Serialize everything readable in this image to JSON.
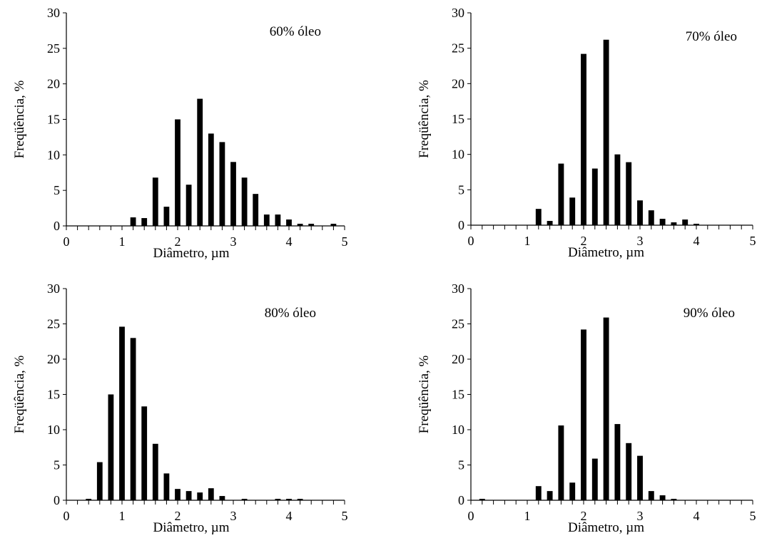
{
  "chart_data": [
    {
      "type": "bar",
      "annotation": "60% óleo",
      "xlabel": "Diâmetro, µm",
      "ylabel": "Freqüência, %",
      "xlim": [
        0,
        5
      ],
      "ylim": [
        0,
        30
      ],
      "xticks": [
        "0",
        "1",
        "2",
        "3",
        "4",
        "5"
      ],
      "yticks": [
        "0",
        "5",
        "10",
        "15",
        "20",
        "25",
        "30"
      ],
      "grid": false,
      "x": [
        1.2,
        1.4,
        1.6,
        1.8,
        2.0,
        2.2,
        2.4,
        2.6,
        2.8,
        3.0,
        3.2,
        3.4,
        3.6,
        3.8,
        4.0,
        4.2,
        4.4,
        4.8
      ],
      "values": [
        1.2,
        1.1,
        6.8,
        2.7,
        15.0,
        5.8,
        17.9,
        13.0,
        11.8,
        9.0,
        6.8,
        4.5,
        1.6,
        1.6,
        0.9,
        0.3,
        0.3,
        0.3
      ]
    },
    {
      "type": "bar",
      "annotation": "70% óleo",
      "xlabel": "Diâmetro, µm",
      "ylabel": "Freqüência, %",
      "xlim": [
        0,
        5
      ],
      "ylim": [
        0,
        30
      ],
      "xticks": [
        "0",
        "1",
        "2",
        "3",
        "4",
        "5"
      ],
      "yticks": [
        "0",
        "5",
        "10",
        "15",
        "20",
        "25",
        "30"
      ],
      "grid": false,
      "x": [
        1.2,
        1.4,
        1.6,
        1.8,
        2.0,
        2.2,
        2.4,
        2.6,
        2.8,
        3.0,
        3.2,
        3.4,
        3.6,
        3.8,
        4.0
      ],
      "values": [
        2.3,
        0.6,
        8.7,
        3.9,
        24.2,
        8.0,
        26.2,
        10.0,
        8.9,
        3.5,
        2.1,
        0.9,
        0.4,
        0.8,
        0.2
      ]
    },
    {
      "type": "bar",
      "annotation": "80% óleo",
      "xlabel": "Diâmetro, µm",
      "ylabel": "Freqüência, %",
      "xlim": [
        0,
        5
      ],
      "ylim": [
        0,
        30
      ],
      "xticks": [
        "0",
        "1",
        "2",
        "3",
        "4",
        "5"
      ],
      "yticks": [
        "0",
        "5",
        "10",
        "15",
        "20",
        "25",
        "30"
      ],
      "grid": false,
      "x": [
        0.4,
        0.6,
        0.8,
        1.0,
        1.2,
        1.4,
        1.6,
        1.8,
        2.0,
        2.2,
        2.4,
        2.6,
        2.8,
        3.2,
        3.8,
        4.0,
        4.2
      ],
      "values": [
        0.2,
        5.4,
        15.0,
        24.6,
        23.0,
        13.3,
        8.0,
        3.8,
        1.6,
        1.3,
        1.1,
        1.7,
        0.6,
        0.2,
        0.2,
        0.2,
        0.2
      ]
    },
    {
      "type": "bar",
      "annotation": "90% óleo",
      "xlabel": "Diâmetro, µm",
      "ylabel": "Freqüência, %",
      "xlim": [
        0,
        5
      ],
      "ylim": [
        0,
        30
      ],
      "xticks": [
        "0",
        "1",
        "2",
        "3",
        "4",
        "5"
      ],
      "yticks": [
        "0",
        "5",
        "10",
        "15",
        "20",
        "25",
        "30"
      ],
      "grid": false,
      "x": [
        0.2,
        1.2,
        1.4,
        1.6,
        1.8,
        2.0,
        2.2,
        2.4,
        2.6,
        2.8,
        3.0,
        3.2,
        3.4,
        3.6
      ],
      "values": [
        0.2,
        2.0,
        1.3,
        10.6,
        2.5,
        24.2,
        5.9,
        25.9,
        10.8,
        8.1,
        6.3,
        1.3,
        0.7,
        0.2
      ]
    }
  ]
}
